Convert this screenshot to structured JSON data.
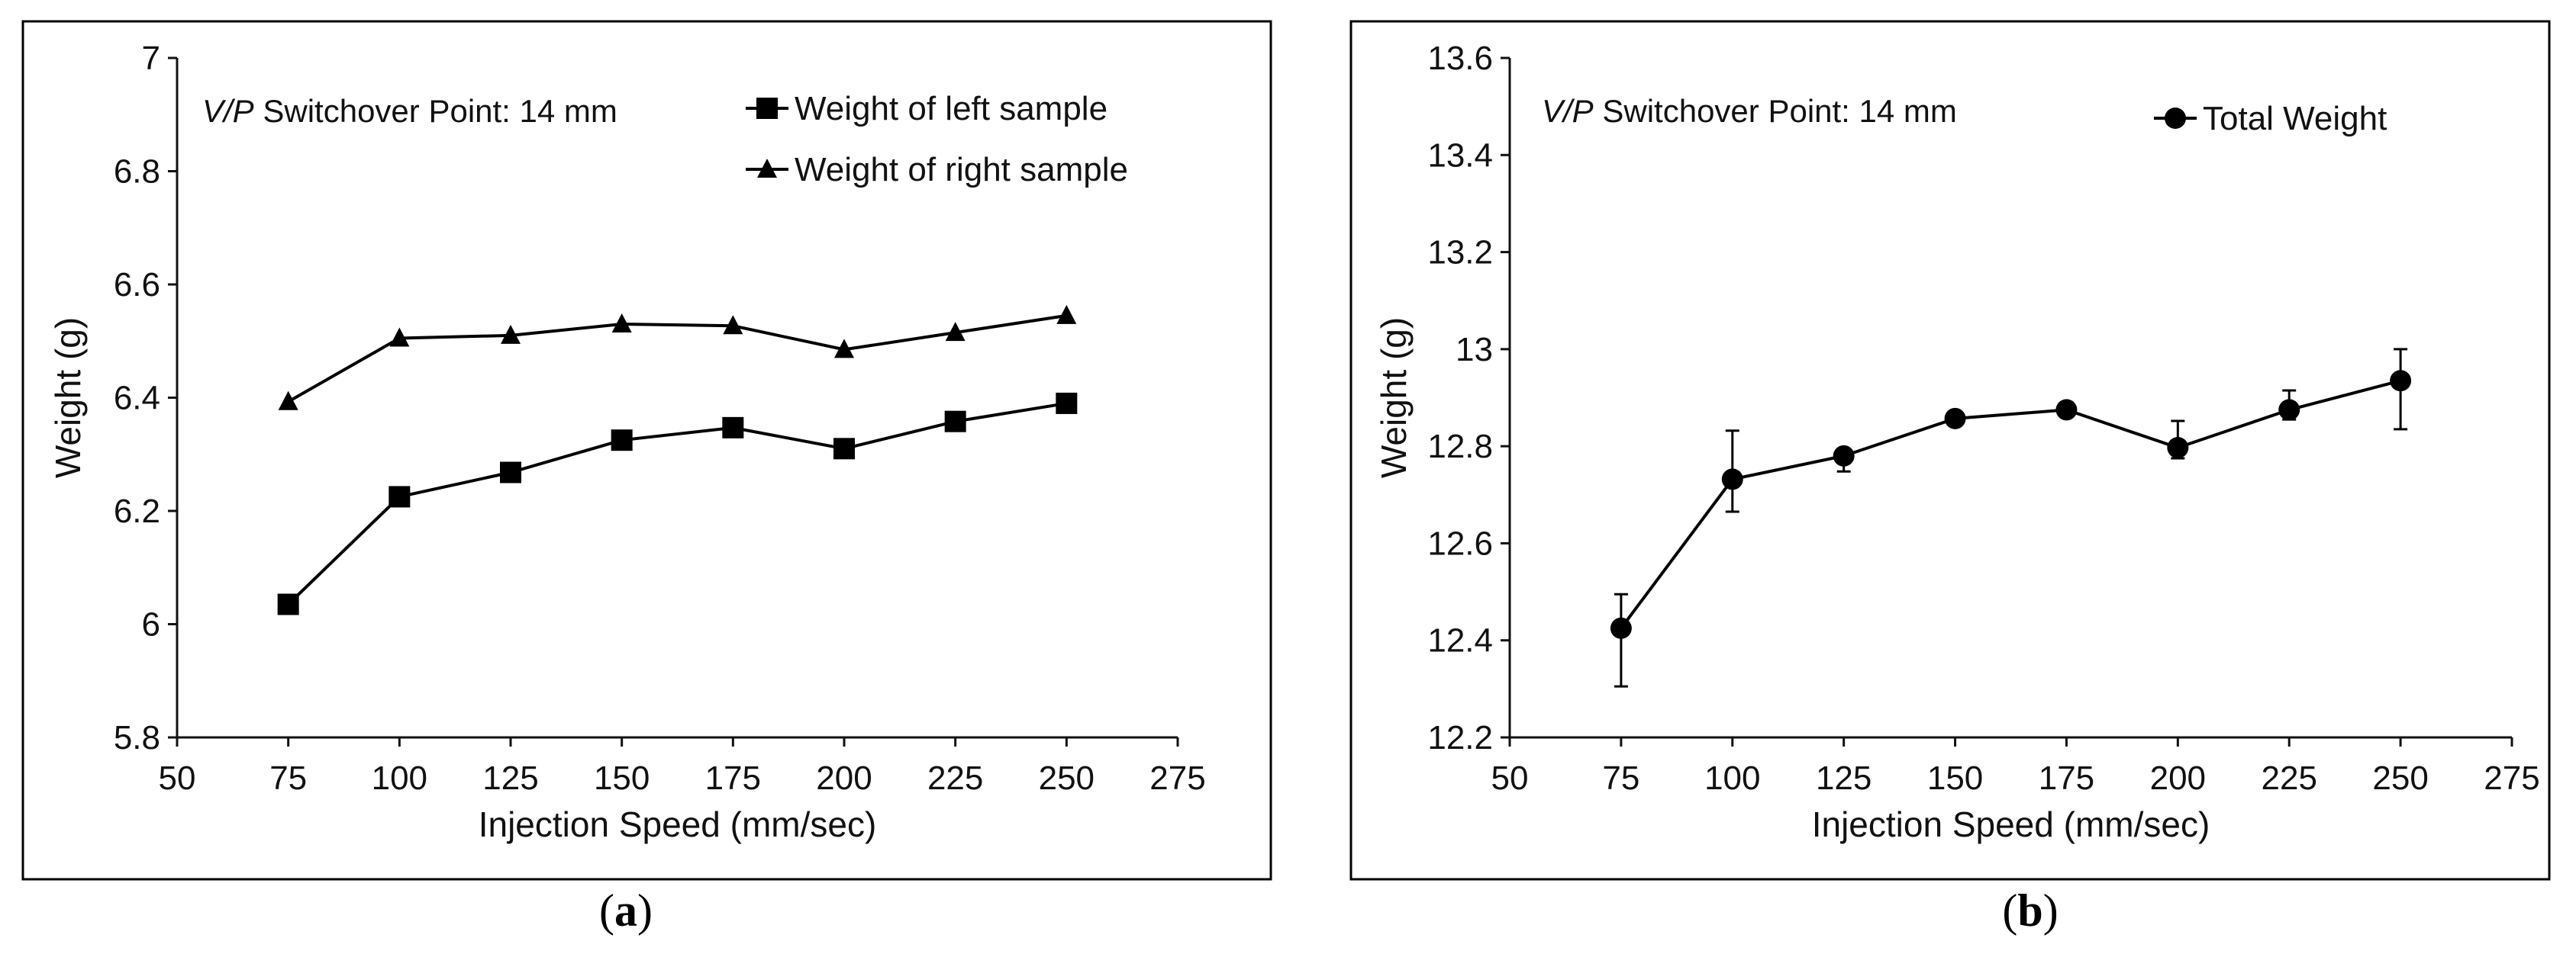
{
  "chart_data": [
    {
      "id": "a",
      "type": "line",
      "caption_letter": "a",
      "annotation_italic": "V/P",
      "annotation_rest": " Switchover Point: 14 mm",
      "xlabel": "Injection Speed (mm/sec)",
      "ylabel": "Weight (g)",
      "xlim": [
        50,
        275
      ],
      "ylim": [
        5.8,
        7
      ],
      "xticks": [
        50,
        75,
        100,
        125,
        150,
        175,
        200,
        225,
        250,
        275
      ],
      "yticks": [
        5.8,
        6,
        6.2,
        6.4,
        6.6,
        6.8,
        7
      ],
      "ytick_labels": [
        "5.8",
        "6",
        "6.2",
        "6.4",
        "6.6",
        "6.8",
        "7"
      ],
      "x": [
        75,
        100,
        125,
        150,
        175,
        200,
        225,
        250
      ],
      "series": [
        {
          "name": "Weight of left sample",
          "marker": "square",
          "values": [
            6.035,
            6.225,
            6.268,
            6.325,
            6.347,
            6.31,
            6.358,
            6.39
          ]
        },
        {
          "name": "Weight of right sample",
          "marker": "triangle",
          "values": [
            6.393,
            6.505,
            6.51,
            6.53,
            6.527,
            6.485,
            6.515,
            6.545
          ]
        }
      ],
      "legend": "top-right"
    },
    {
      "id": "b",
      "type": "line",
      "caption_letter": "b",
      "annotation_italic": "V/P",
      "annotation_rest": " Switchover Point: 14 mm",
      "xlabel": "Injection Speed (mm/sec)",
      "ylabel": "Weight (g)",
      "xlim": [
        50,
        275
      ],
      "ylim": [
        12.2,
        13.6
      ],
      "xticks": [
        50,
        75,
        100,
        125,
        150,
        175,
        200,
        225,
        250,
        275
      ],
      "yticks": [
        12.2,
        12.4,
        12.6,
        12.8,
        13,
        13.2,
        13.4,
        13.6
      ],
      "ytick_labels": [
        "12.2",
        "12.4",
        "12.6",
        "12.8",
        "13",
        "13.2",
        "13.4",
        "13.6"
      ],
      "x": [
        75,
        100,
        125,
        150,
        175,
        200,
        225,
        250
      ],
      "series": [
        {
          "name": "Total Weight",
          "marker": "circle",
          "values": [
            12.425,
            12.732,
            12.78,
            12.857,
            12.875,
            12.797,
            12.875,
            12.935
          ],
          "error_low": [
            12.305,
            12.665,
            12.748,
            12.845,
            12.865,
            12.775,
            12.855,
            12.835
          ],
          "error_high": [
            12.495,
            12.832,
            12.792,
            12.867,
            12.885,
            12.852,
            12.915,
            13.0
          ]
        }
      ],
      "legend": "top-right"
    }
  ]
}
